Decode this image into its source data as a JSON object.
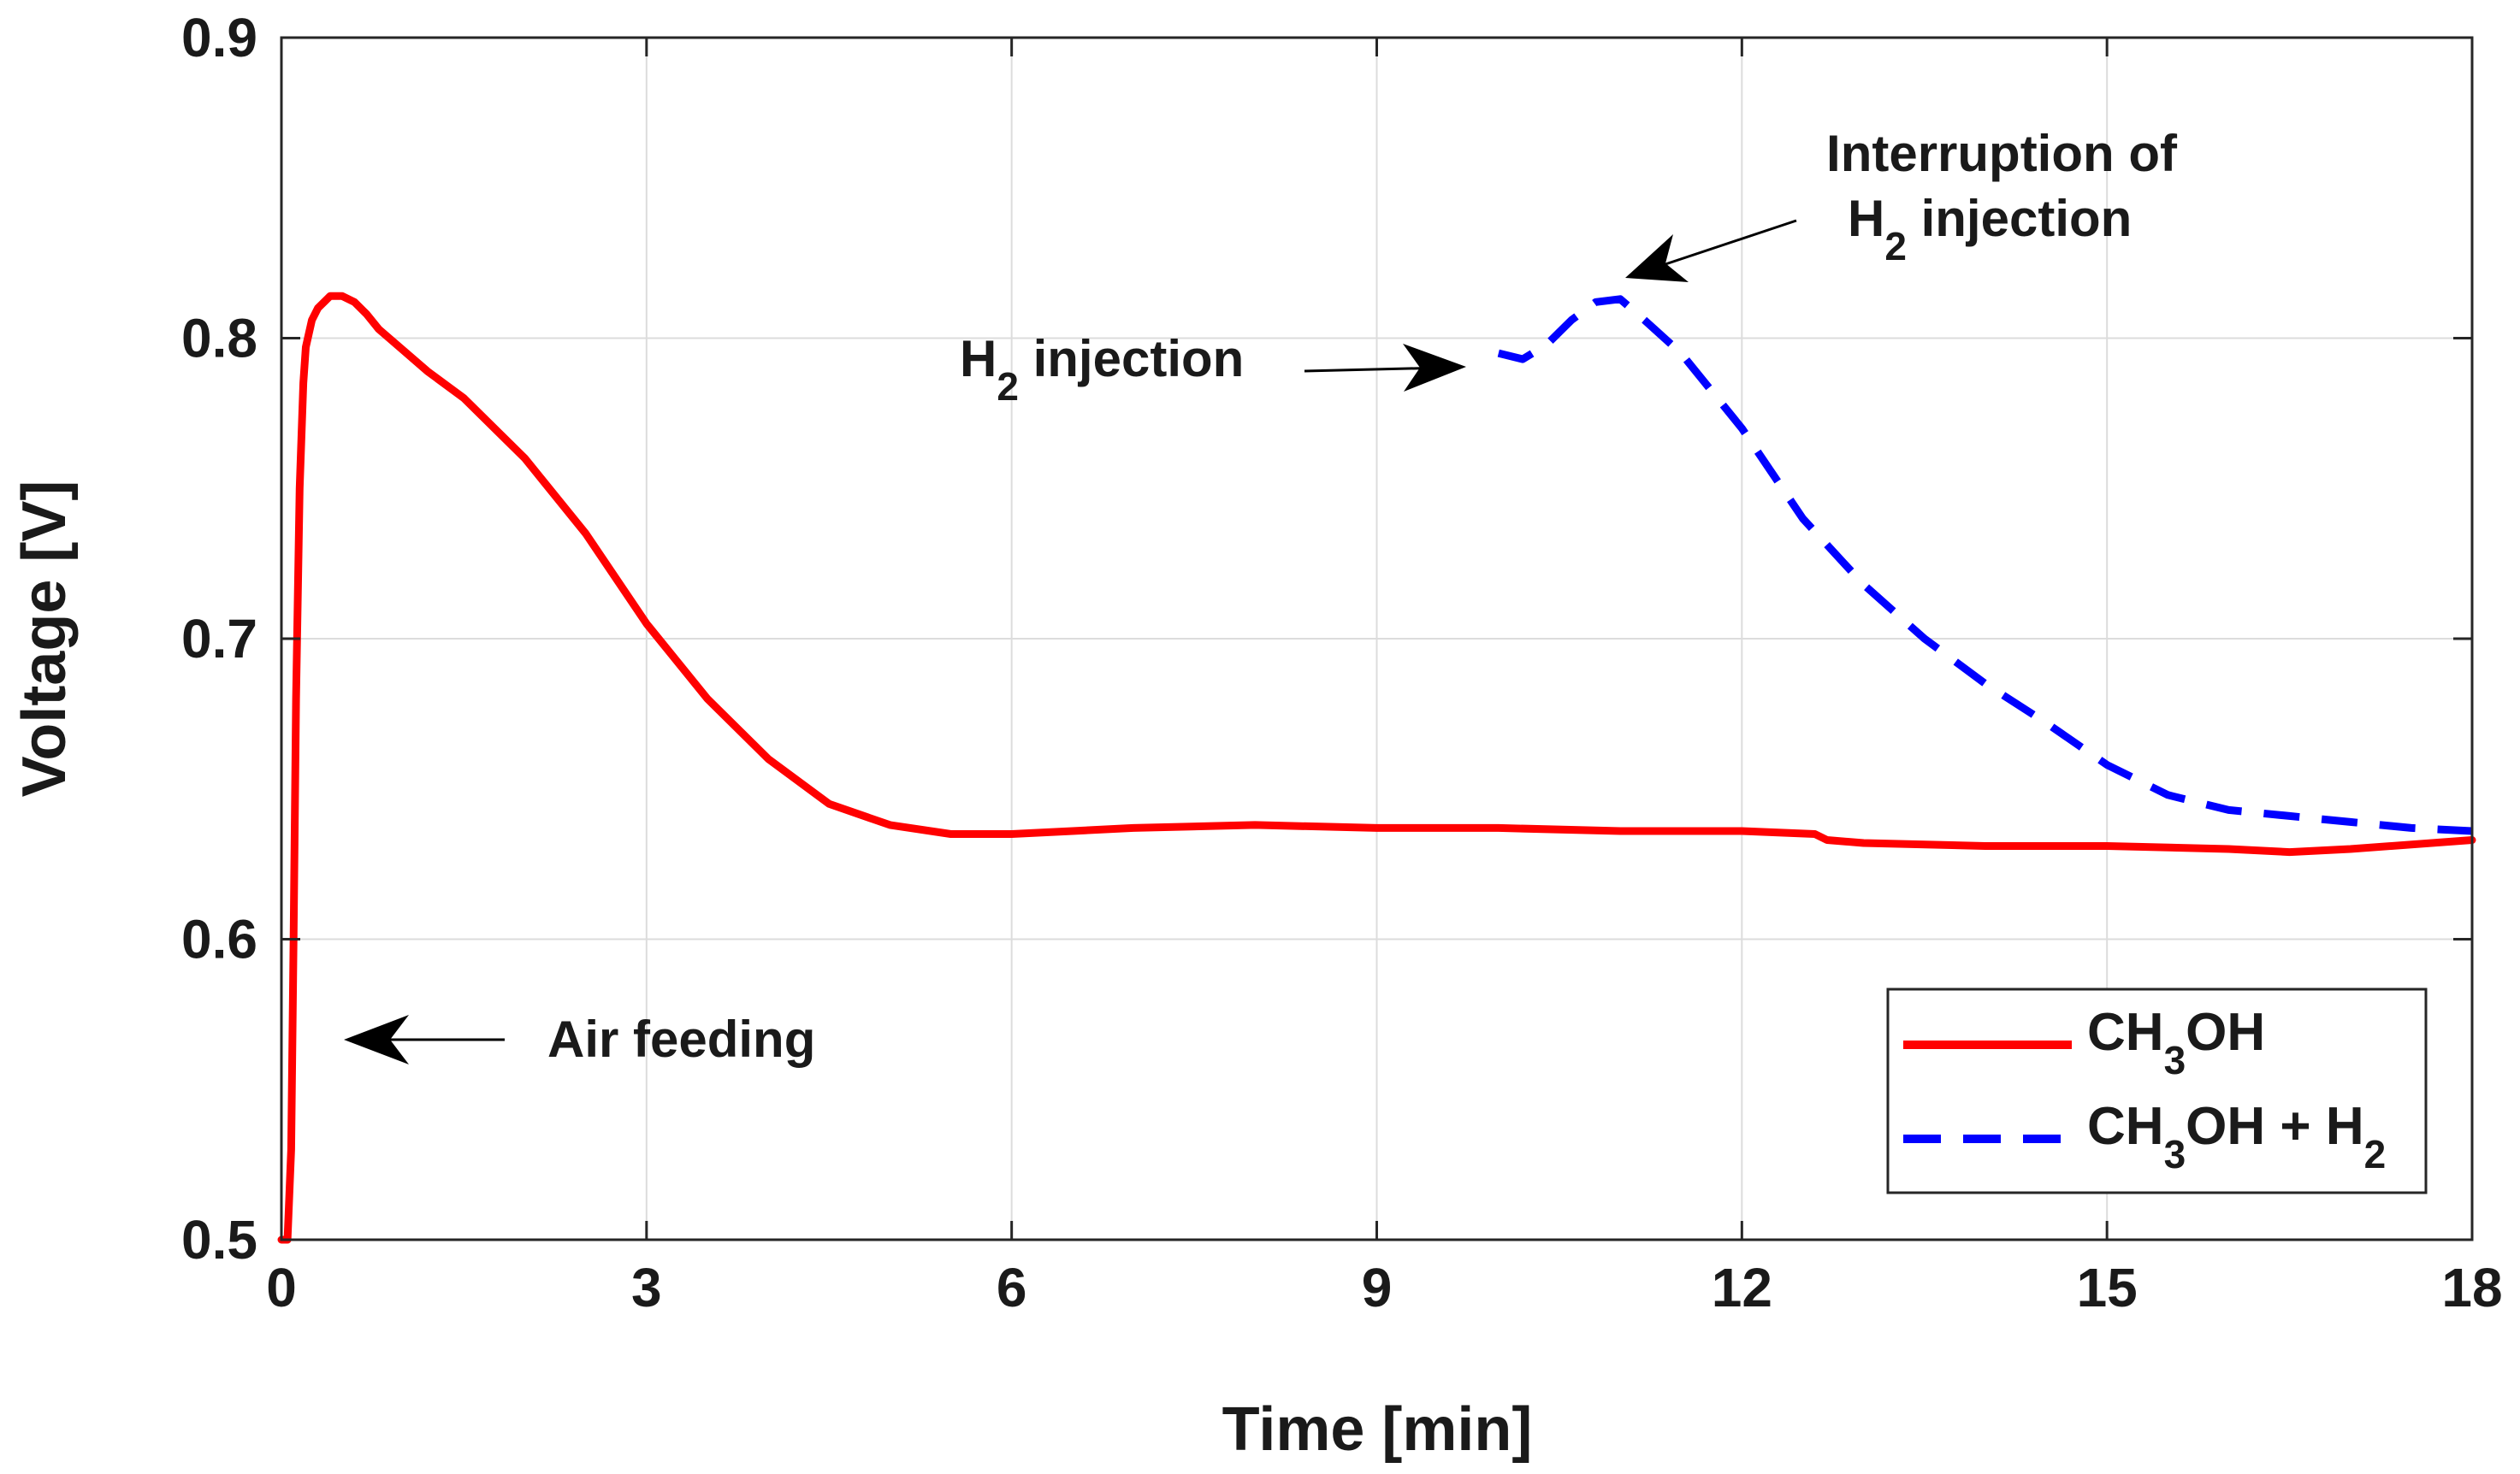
{
  "chart_data": {
    "type": "line",
    "xlabel": "Time [min]",
    "ylabel": "Voltage [V]",
    "xlim": [
      0,
      18
    ],
    "ylim": [
      0.5,
      0.9
    ],
    "xticks": [
      0,
      3,
      6,
      9,
      12,
      15,
      18
    ],
    "xtick_labels": [
      "0",
      "3",
      "6",
      "9",
      "12",
      "15",
      "18"
    ],
    "yticks": [
      0.5,
      0.6,
      0.7,
      0.8,
      0.9
    ],
    "ytick_labels": [
      "0.5",
      "0.6",
      "0.7",
      "0.8",
      "0.9"
    ],
    "grid": true,
    "legend_position": "bottom-right",
    "series": [
      {
        "name": "CH3OH",
        "legend_main": "CH",
        "legend_sub": "3",
        "legend_tail": "OH",
        "color": "#ff0000",
        "style": "solid",
        "x": [
          0.0,
          0.05,
          0.08,
          0.1,
          0.12,
          0.15,
          0.18,
          0.2,
          0.25,
          0.3,
          0.4,
          0.5,
          0.6,
          0.7,
          0.8,
          1.0,
          1.2,
          1.5,
          2.0,
          2.5,
          3.0,
          3.5,
          4.0,
          4.5,
          5.0,
          5.5,
          6.0,
          6.5,
          7.0,
          8.0,
          9.0,
          10.0,
          11.0,
          12.0,
          12.6,
          12.7,
          13.0,
          14.0,
          15.0,
          16.0,
          16.5,
          17.0,
          18.0
        ],
        "y": [
          0.5,
          0.5,
          0.53,
          0.6,
          0.68,
          0.75,
          0.785,
          0.797,
          0.806,
          0.81,
          0.814,
          0.814,
          0.812,
          0.808,
          0.803,
          0.796,
          0.789,
          0.78,
          0.76,
          0.735,
          0.705,
          0.68,
          0.66,
          0.645,
          0.638,
          0.635,
          0.635,
          0.636,
          0.637,
          0.638,
          0.637,
          0.637,
          0.636,
          0.636,
          0.635,
          0.633,
          0.632,
          0.631,
          0.631,
          0.63,
          0.629,
          0.63,
          0.633
        ]
      },
      {
        "name": "CH3OH + H2",
        "legend_main": "CH",
        "legend_sub": "3",
        "legend_tail": "OH + H",
        "legend_sub2": "2",
        "color": "#0000ff",
        "style": "dashed",
        "x": [
          10.0,
          10.2,
          10.4,
          10.6,
          10.8,
          11.0,
          11.2,
          11.5,
          12.0,
          12.5,
          13.0,
          13.5,
          14.0,
          14.5,
          15.0,
          15.5,
          16.0,
          16.5,
          17.0,
          17.5,
          18.0
        ],
        "y": [
          0.795,
          0.793,
          0.798,
          0.806,
          0.812,
          0.813,
          0.806,
          0.795,
          0.77,
          0.74,
          0.718,
          0.7,
          0.685,
          0.672,
          0.658,
          0.648,
          0.643,
          0.641,
          0.639,
          0.637,
          0.636
        ]
      }
    ],
    "annotations": [
      {
        "id": "air",
        "text": "Air feeding"
      },
      {
        "id": "h2",
        "main": "H",
        "sub": "2",
        "tail": " injection"
      },
      {
        "id": "int",
        "line1": "Interruption of",
        "main": "H",
        "sub": "2",
        "tail": " injection"
      }
    ]
  }
}
